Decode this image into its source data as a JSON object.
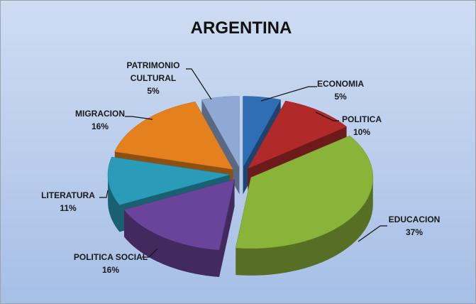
{
  "chart_data": {
    "type": "pie",
    "title": "ARGENTINA",
    "categories": [
      "ECONOMIA",
      "POLITICA",
      "EDUCACION",
      "POLITICA SOCIAL",
      "LITERATURA",
      "MIGRACION",
      "PATRIMONIO CULTURAL"
    ],
    "values": [
      5,
      10,
      37,
      16,
      11,
      16,
      5
    ],
    "value_labels": [
      "5%",
      "10%",
      "37%",
      "16%",
      "11%",
      "16%",
      "5%"
    ],
    "colors": [
      "#2f6db5",
      "#b02a2a",
      "#8ab33a",
      "#6a449a",
      "#2a9bb8",
      "#e4811e",
      "#8fa9d4"
    ]
  }
}
